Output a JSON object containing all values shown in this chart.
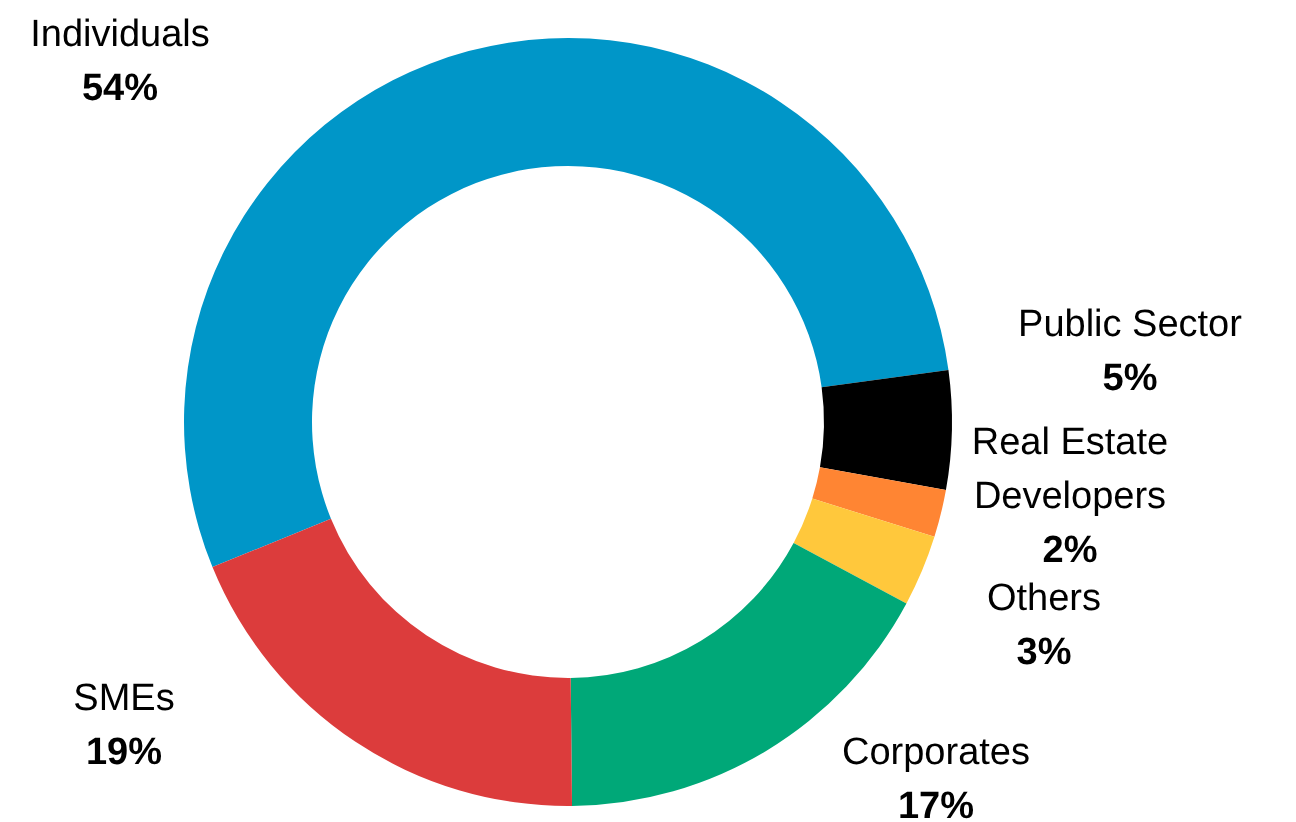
{
  "chart_data": {
    "type": "donut",
    "categories": [
      "Individuals",
      "Public Sector",
      "Real Estate Developers",
      "Others",
      "Corporates",
      "SMEs"
    ],
    "values": [
      54,
      5,
      2,
      3,
      17,
      19
    ],
    "value_labels": [
      "54%",
      "5%",
      "2%",
      "3%",
      "17%",
      "19%"
    ],
    "colors": [
      "#0096c8",
      "#000000",
      "#ff8533",
      "#ffc83c",
      "#00a878",
      "#dc3c3c"
    ],
    "legend": false
  }
}
